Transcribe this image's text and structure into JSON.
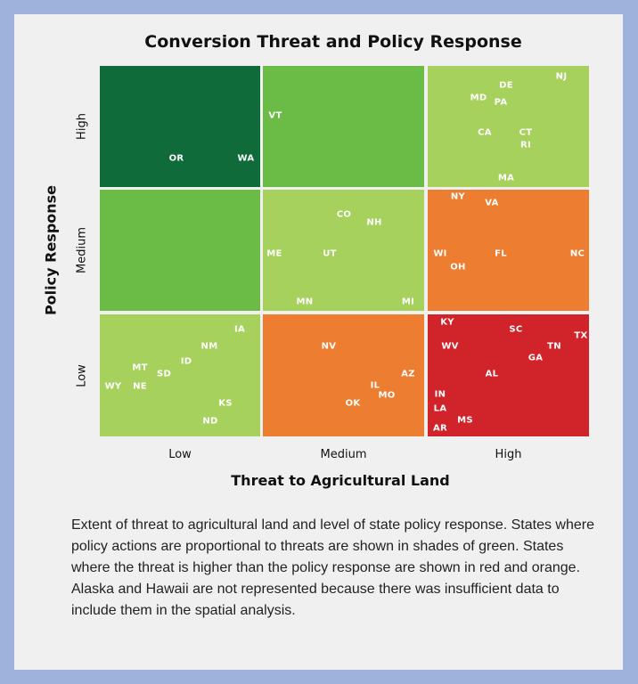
{
  "chart_data": {
    "type": "heatmap",
    "title": "Conversion Threat and Policy Response",
    "xlabel": "Threat to Agricultural Land",
    "ylabel": "Policy Response",
    "x_categories": [
      "Low",
      "Medium",
      "High"
    ],
    "y_categories": [
      "High",
      "Medium",
      "Low"
    ],
    "cells": [
      {
        "threat": "Low",
        "policy": "High",
        "color": "#0f6b3a",
        "states": [
          "OR",
          "WA"
        ]
      },
      {
        "threat": "Medium",
        "policy": "High",
        "color": "#6bbc46",
        "states": [
          "VT"
        ]
      },
      {
        "threat": "High",
        "policy": "High",
        "color": "#a7d15d",
        "states": [
          "NJ",
          "DE",
          "MD",
          "PA",
          "CA",
          "CT",
          "RI",
          "MA"
        ]
      },
      {
        "threat": "Low",
        "policy": "Medium",
        "color": "#6bbc46",
        "states": []
      },
      {
        "threat": "Medium",
        "policy": "Medium",
        "color": "#a7d15d",
        "states": [
          "CO",
          "NH",
          "ME",
          "UT",
          "MN",
          "MI"
        ]
      },
      {
        "threat": "High",
        "policy": "Medium",
        "color": "#ed7d31",
        "states": [
          "NY",
          "VA",
          "WI",
          "FL",
          "NC",
          "OH"
        ]
      },
      {
        "threat": "Low",
        "policy": "Low",
        "color": "#a7d15d",
        "states": [
          "IA",
          "NM",
          "ID",
          "MT",
          "SD",
          "WY",
          "NE",
          "KS",
          "ND"
        ]
      },
      {
        "threat": "Medium",
        "policy": "Low",
        "color": "#ed7d31",
        "states": [
          "NV",
          "AZ",
          "IL",
          "MO",
          "OK"
        ]
      },
      {
        "threat": "High",
        "policy": "Low",
        "color": "#d1232a",
        "states": [
          "KY",
          "SC",
          "TX",
          "WV",
          "TN",
          "GA",
          "AL",
          "IN",
          "LA",
          "MS",
          "AR"
        ]
      }
    ]
  },
  "caption": "Extent of threat to agricultural land and level of state policy response. States where policy actions are proportional to threats are shown in shades of green. States where the threat is higher than the policy response are shown in red and orange. Alaska and Hawaii are not represented because there was insufficient data to include them in the spatial analysis."
}
